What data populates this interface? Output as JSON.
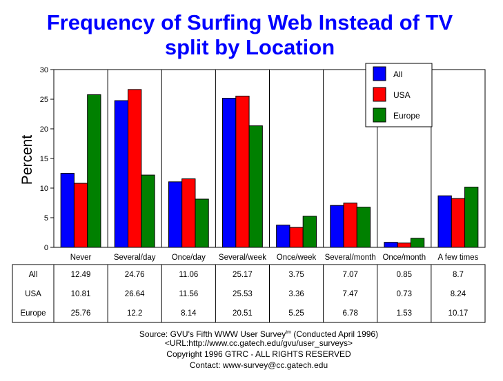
{
  "chart_data": {
    "type": "bar",
    "title_lines": [
      "Frequency of Surfing Web Instead of TV",
      "split by Location"
    ],
    "ylabel": "Percent",
    "ylim": [
      0,
      30
    ],
    "yticks": [
      "0",
      "5",
      "10",
      "15",
      "20",
      "25",
      "30"
    ],
    "grid": "vertical separators between categories",
    "legend_position": "top-right",
    "categories": [
      "Never",
      "Several/day",
      "Once/day",
      "Several/week",
      "Once/week",
      "Several/month",
      "Once/month",
      "A few times"
    ],
    "series": [
      {
        "name": "All",
        "color": "#0000ff",
        "values": [
          12.49,
          24.76,
          11.06,
          25.17,
          3.75,
          7.07,
          0.85,
          8.7
        ],
        "labels": [
          "12.49",
          "24.76",
          "11.06",
          "25.17",
          "3.75",
          "7.07",
          "0.85",
          "8.7"
        ]
      },
      {
        "name": "USA",
        "color": "#ff0000",
        "values": [
          10.81,
          26.64,
          11.56,
          25.53,
          3.36,
          7.47,
          0.73,
          8.24
        ],
        "labels": [
          "10.81",
          "26.64",
          "11.56",
          "25.53",
          "3.36",
          "7.47",
          "0.73",
          "8.24"
        ]
      },
      {
        "name": "Europe",
        "color": "#008000",
        "values": [
          25.76,
          12.2,
          8.14,
          20.51,
          5.25,
          6.78,
          1.53,
          10.17
        ],
        "labels": [
          "25.76",
          "12.2",
          "8.14",
          "20.51",
          "5.25",
          "6.78",
          "1.53",
          "10.17"
        ]
      }
    ]
  },
  "source": {
    "line1_prefix": "Source: GVU's Fifth WWW User Survey",
    "line1_tm": "tm",
    "line1_suffix": "  (Conducted April 1996)",
    "line2": "<URL:http://www.cc.gatech.edu/gvu/user_surveys>",
    "line3": "Copyright 1996 GTRC -  ALL RIGHTS RESERVED",
    "line4": "Contact: www-survey@cc.gatech.edu"
  }
}
